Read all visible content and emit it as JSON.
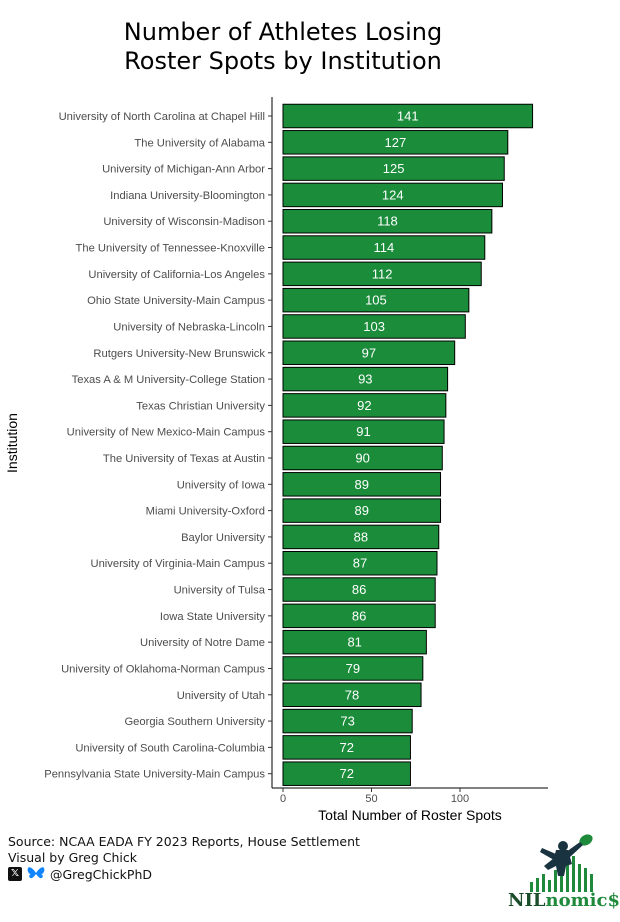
{
  "title_lines": [
    "Number of Athletes Losing",
    "Roster Spots by Institution"
  ],
  "chart_data": {
    "type": "bar",
    "orientation": "horizontal",
    "title": "Number of Athletes Losing Roster Spots by Institution",
    "xlabel": "Total Number of Roster Spots",
    "ylabel": "Institution",
    "xlim": [
      0,
      150
    ],
    "xticks": [
      0,
      50,
      100
    ],
    "grid": false,
    "bar_color": "#1a8c3a",
    "bar_border": "#000000",
    "label_color": "#ffffff",
    "categories": [
      "University of North Carolina at Chapel Hill",
      "The University of Alabama",
      "University of Michigan-Ann Arbor",
      "Indiana University-Bloomington",
      "University of Wisconsin-Madison",
      "The University of Tennessee-Knoxville",
      "University of California-Los Angeles",
      "Ohio State University-Main Campus",
      "University of Nebraska-Lincoln",
      "Rutgers University-New Brunswick",
      "Texas A & M University-College Station",
      "Texas Christian University",
      "University of New Mexico-Main Campus",
      "The University of Texas at Austin",
      "University of Iowa",
      "Miami University-Oxford",
      "Baylor University",
      "University of Virginia-Main Campus",
      "University of Tulsa",
      "Iowa State University",
      "University of Notre Dame",
      "University of Oklahoma-Norman Campus",
      "University of Utah",
      "Georgia Southern University",
      "University of South Carolina-Columbia",
      "Pennsylvania State University-Main Campus"
    ],
    "values": [
      141,
      127,
      125,
      124,
      118,
      114,
      112,
      105,
      103,
      97,
      93,
      92,
      91,
      90,
      89,
      89,
      88,
      87,
      86,
      86,
      81,
      79,
      78,
      73,
      72,
      72
    ]
  },
  "footer": {
    "source": "Source: NCAA EADA FY 2023 Reports, House Settlement",
    "visual_by": "Visual by Greg Chick",
    "handle": "@GregChickPhD",
    "x_icon": "x-logo-icon",
    "bluesky_icon": "butterfly-icon"
  },
  "logo": {
    "text_main": "NIL",
    "text_accent": "nomic$",
    "icon": "football-player-catch-icon"
  }
}
